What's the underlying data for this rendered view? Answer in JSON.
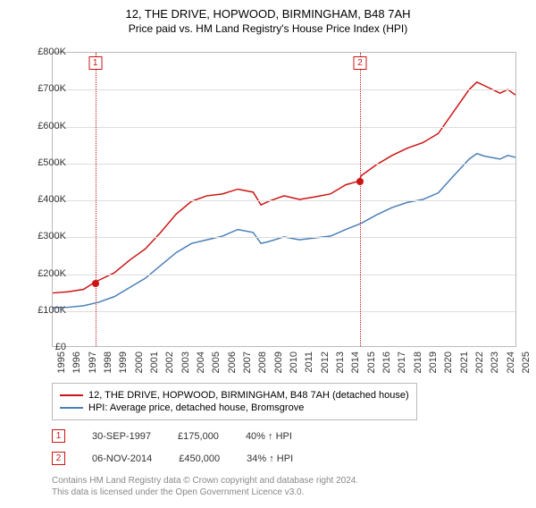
{
  "title": "12, THE DRIVE, HOPWOOD, BIRMINGHAM, B48 7AH",
  "subtitle": "Price paid vs. HM Land Registry's House Price Index (HPI)",
  "chart": {
    "type": "line",
    "background_color": "#ffffff",
    "grid_color": "#dddddd",
    "border_color": "#bbbbbb",
    "x": {
      "min": 1995,
      "max": 2025,
      "step": 1
    },
    "y": {
      "min": 0,
      "max": 800000,
      "step": 100000,
      "prefix": "£",
      "suffix": "K",
      "divisor": 1000
    },
    "series": [
      {
        "name": "12, THE DRIVE, HOPWOOD, BIRMINGHAM, B48 7AH (detached house)",
        "color": "#cc1414",
        "line_width": 1.5,
        "points": [
          [
            1995,
            145000
          ],
          [
            1996,
            148000
          ],
          [
            1997,
            155000
          ],
          [
            1997.75,
            175000
          ],
          [
            1998,
            180000
          ],
          [
            1999,
            200000
          ],
          [
            2000,
            235000
          ],
          [
            2001,
            265000
          ],
          [
            2002,
            310000
          ],
          [
            2003,
            360000
          ],
          [
            2004,
            395000
          ],
          [
            2005,
            410000
          ],
          [
            2006,
            415000
          ],
          [
            2007,
            428000
          ],
          [
            2008,
            420000
          ],
          [
            2008.5,
            385000
          ],
          [
            2009,
            395000
          ],
          [
            2010,
            410000
          ],
          [
            2011,
            400000
          ],
          [
            2012,
            407000
          ],
          [
            2013,
            415000
          ],
          [
            2014,
            440000
          ],
          [
            2014.85,
            450000
          ],
          [
            2015,
            465000
          ],
          [
            2016,
            495000
          ],
          [
            2017,
            520000
          ],
          [
            2018,
            540000
          ],
          [
            2019,
            555000
          ],
          [
            2020,
            580000
          ],
          [
            2021,
            640000
          ],
          [
            2022,
            700000
          ],
          [
            2022.5,
            720000
          ],
          [
            2023,
            710000
          ],
          [
            2024,
            690000
          ],
          [
            2024.5,
            700000
          ],
          [
            2025,
            685000
          ]
        ]
      },
      {
        "name": "HPI: Average price, detached house, Bromsgrove",
        "color": "#4a7fb8",
        "line_width": 1.5,
        "points": [
          [
            1995,
            105000
          ],
          [
            1996,
            106000
          ],
          [
            1997,
            110000
          ],
          [
            1998,
            120000
          ],
          [
            1999,
            135000
          ],
          [
            2000,
            160000
          ],
          [
            2001,
            185000
          ],
          [
            2002,
            220000
          ],
          [
            2003,
            255000
          ],
          [
            2004,
            280000
          ],
          [
            2005,
            290000
          ],
          [
            2006,
            300000
          ],
          [
            2007,
            318000
          ],
          [
            2008,
            310000
          ],
          [
            2008.5,
            280000
          ],
          [
            2009,
            285000
          ],
          [
            2010,
            298000
          ],
          [
            2011,
            290000
          ],
          [
            2012,
            295000
          ],
          [
            2013,
            300000
          ],
          [
            2014,
            318000
          ],
          [
            2015,
            335000
          ],
          [
            2016,
            358000
          ],
          [
            2017,
            378000
          ],
          [
            2018,
            392000
          ],
          [
            2019,
            400000
          ],
          [
            2020,
            418000
          ],
          [
            2021,
            465000
          ],
          [
            2022,
            510000
          ],
          [
            2022.5,
            525000
          ],
          [
            2023,
            518000
          ],
          [
            2024,
            510000
          ],
          [
            2024.5,
            520000
          ],
          [
            2025,
            515000
          ]
        ]
      }
    ],
    "markers": [
      {
        "n": "1",
        "x": 1997.75,
        "y": 175000,
        "color": "#cc1414",
        "date": "30-SEP-1997",
        "price": "£175,000",
        "delta": "40% ↑ HPI"
      },
      {
        "n": "2",
        "x": 2014.85,
        "y": 450000,
        "color": "#cc1414",
        "date": "06-NOV-2014",
        "price": "£450,000",
        "delta": "34% ↑ HPI"
      }
    ]
  },
  "legend_label_1": "12, THE DRIVE, HOPWOOD, BIRMINGHAM, B48 7AH (detached house)",
  "legend_label_2": "HPI: Average price, detached house, Bromsgrove",
  "footer_line1": "Contains HM Land Registry data © Crown copyright and database right 2024.",
  "footer_line2": "This data is licensed under the Open Government Licence v3.0."
}
